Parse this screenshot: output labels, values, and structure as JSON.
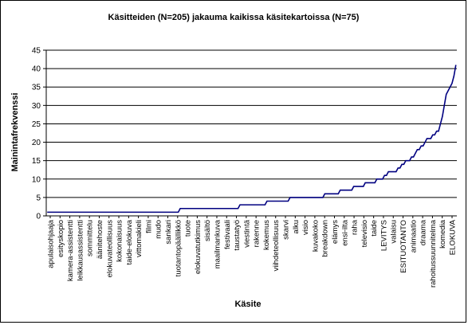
{
  "chart_data": {
    "type": "line",
    "title": "Käsitteiden (N=205) jakauma kaikissa käsitekartoissa (N=75)",
    "xlabel": "Käsite",
    "ylabel": "Mainintafrekvenssi",
    "ylim": [
      0,
      45
    ],
    "yticks": [
      0,
      5,
      10,
      15,
      20,
      25,
      30,
      35,
      40,
      45
    ],
    "grid": "horizontal",
    "legend": "none",
    "n_points": 205,
    "line_color": "#000080",
    "x_labels": [
      "apulaisohjaaja",
      "esityskopio",
      "kamera-assistentti",
      "leikkausassistentti",
      "sommittelu",
      "äänitehoste",
      "elokuvateollisuus",
      "kokonaisuus",
      "taide-elokuva",
      "vittomakieli",
      "filmi",
      "mudo",
      "sankari",
      "tuotantopäällikkö",
      "tuote",
      "elokuvatutkimus",
      "sisältö",
      "maailmankuva",
      "festivaali",
      "taustatyö",
      "viestintä",
      "rakenne",
      "kokemus",
      "viihdeteollisuus",
      "skarvi",
      "alku",
      "visio",
      "kuvakoko",
      "breakdown",
      "elämys",
      "ensi-ilta",
      "raha",
      "televisio",
      "taide",
      "LEVITYS",
      "valaisu",
      "ESITUOTANTO",
      "animaatio",
      "draama",
      "rahoitussuunnitelma",
      "komedia",
      "ELOKUVA"
    ],
    "series": [
      {
        "values": [
          1,
          1,
          1,
          1,
          1,
          1,
          1,
          1,
          1,
          1,
          1,
          1,
          1,
          1,
          1,
          1,
          1,
          1,
          1,
          1,
          1,
          1,
          1,
          1,
          1,
          1,
          1,
          1,
          1,
          1,
          1,
          1,
          1,
          1,
          1,
          1,
          1,
          1,
          1,
          1,
          1,
          1,
          1,
          1,
          1,
          1,
          1,
          1,
          1,
          1,
          1,
          1,
          1,
          1,
          1,
          1,
          1,
          1,
          1,
          1,
          1,
          1,
          1,
          1,
          1,
          1,
          1,
          1,
          1,
          2,
          2,
          2,
          2,
          2,
          2,
          2,
          2,
          2,
          2,
          2,
          2,
          2,
          2,
          2,
          2,
          2,
          2,
          2,
          2,
          2,
          2,
          2,
          2,
          2,
          2,
          2,
          2,
          2,
          2,
          2,
          3,
          3,
          3,
          3,
          3,
          3,
          3,
          3,
          3,
          3,
          3,
          3,
          3,
          3,
          4,
          4,
          4,
          4,
          4,
          4,
          4,
          4,
          4,
          4,
          4,
          4,
          5,
          5,
          5,
          5,
          5,
          5,
          5,
          5,
          5,
          5,
          5,
          5,
          5,
          5,
          5,
          5,
          5,
          5,
          6,
          6,
          6,
          6,
          6,
          6,
          6,
          6,
          7,
          7,
          7,
          7,
          7,
          7,
          7,
          8,
          8,
          8,
          8,
          8,
          8,
          9,
          9,
          9,
          9,
          9,
          9,
          10,
          10,
          10,
          10,
          11,
          11,
          12,
          12,
          12,
          12,
          12,
          13,
          13,
          14,
          14,
          15,
          15,
          15,
          16,
          16,
          17,
          18,
          18,
          19,
          19,
          20,
          21,
          21,
          21,
          22,
          22,
          23,
          23,
          25,
          27,
          30,
          33,
          34,
          35,
          36,
          38,
          41
        ]
      }
    ]
  }
}
